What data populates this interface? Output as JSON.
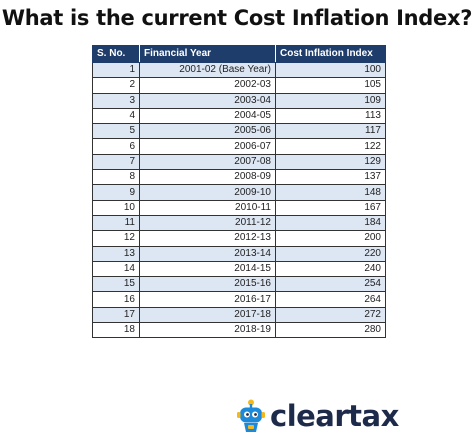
{
  "title": "What is the current Cost Inflation Index?",
  "table": {
    "headers": [
      "S. No.",
      "Financial Year",
      "Cost Inflation Index"
    ],
    "rows": [
      {
        "sno": "1",
        "year": "2001-02 (Base Year)",
        "index": "100"
      },
      {
        "sno": "2",
        "year": "2002-03",
        "index": "105"
      },
      {
        "sno": "3",
        "year": "2003-04",
        "index": "109"
      },
      {
        "sno": "4",
        "year": "2004-05",
        "index": "113"
      },
      {
        "sno": "5",
        "year": "2005-06",
        "index": "117"
      },
      {
        "sno": "6",
        "year": "2006-07",
        "index": "122"
      },
      {
        "sno": "7",
        "year": "2007-08",
        "index": "129"
      },
      {
        "sno": "8",
        "year": "2008-09",
        "index": "137"
      },
      {
        "sno": "9",
        "year": "2009-10",
        "index": "148"
      },
      {
        "sno": "10",
        "year": "2010-11",
        "index": "167"
      },
      {
        "sno": "11",
        "year": "2011-12",
        "index": "184"
      },
      {
        "sno": "12",
        "year": "2012-13",
        "index": "200"
      },
      {
        "sno": "13",
        "year": "2013-14",
        "index": "220"
      },
      {
        "sno": "14",
        "year": "2014-15",
        "index": "240"
      },
      {
        "sno": "15",
        "year": "2015-16",
        "index": "254"
      },
      {
        "sno": "16",
        "year": "2016-17",
        "index": "264"
      },
      {
        "sno": "17",
        "year": "2017-18",
        "index": "272"
      },
      {
        "sno": "18",
        "year": "2018-19",
        "index": "280"
      }
    ]
  },
  "brand": {
    "name": "cleartax",
    "icon": "cleartax-mascot-icon",
    "colors": {
      "blue": "#1c8ad9",
      "yellow": "#f5b81c",
      "text": "#1e2a4a"
    }
  },
  "colors": {
    "header_bg": "#1f3d6b",
    "stripe_bg": "#dde6f3"
  }
}
